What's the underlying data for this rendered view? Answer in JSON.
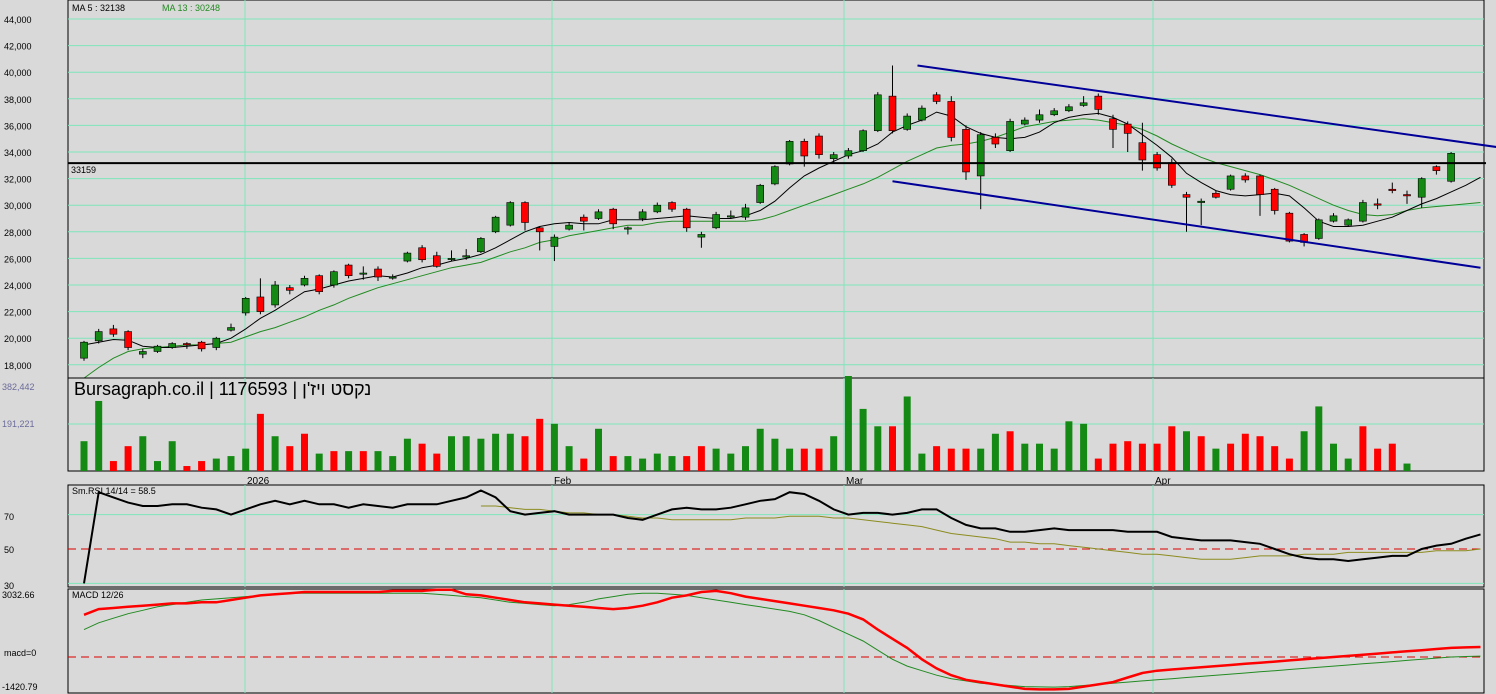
{
  "chart_data": {
    "type": "candlestick",
    "price_panel": {
      "yticks": [
        "44,000",
        "42,000",
        "40,000",
        "38,000",
        "36,000",
        "34,000",
        "32,000",
        "30,000",
        "28,000",
        "26,000",
        "24,000",
        "22,000",
        "20,000",
        "18,000"
      ],
      "ylim": [
        17000,
        44000
      ],
      "ma5_label": "MA 5 : 32138",
      "ma13_label": "MA 13 : 30248",
      "last_price_label": "33159",
      "last_price": 33159,
      "watermark": "Bursagraph.co.il | 1176593 | נקסט ויז'ן",
      "channel_upper": {
        "from": [
          56.7,
          40500
        ],
        "to": [
          98.5,
          34000
        ]
      },
      "channel_lower": {
        "from": [
          55.0,
          31800
        ],
        "to": [
          95.0,
          25300
        ]
      }
    },
    "candles": [
      [
        18500,
        19700,
        18300,
        19800,
        "g"
      ],
      [
        19800,
        20500,
        19600,
        20700,
        "g"
      ],
      [
        20700,
        20300,
        20100,
        21000,
        "r"
      ],
      [
        20500,
        19300,
        19100,
        20600,
        "r"
      ],
      [
        18800,
        19000,
        18500,
        19200,
        "g"
      ],
      [
        19000,
        19400,
        18900,
        19500,
        "g"
      ],
      [
        19300,
        19600,
        19200,
        19700,
        "g"
      ],
      [
        19600,
        19500,
        19200,
        19700,
        "r"
      ],
      [
        19700,
        19200,
        19000,
        19800,
        "r"
      ],
      [
        19300,
        20000,
        19100,
        20100,
        "g"
      ],
      [
        20600,
        20800,
        20500,
        21100,
        "g"
      ],
      [
        21900,
        23000,
        21700,
        23100,
        "g"
      ],
      [
        23100,
        22000,
        21800,
        24500,
        "r"
      ],
      [
        22500,
        24000,
        22300,
        24300,
        "g"
      ],
      [
        23800,
        23600,
        23300,
        24000,
        "r"
      ],
      [
        24000,
        24500,
        23900,
        24700,
        "g"
      ],
      [
        24700,
        23500,
        23300,
        24800,
        "r"
      ],
      [
        24000,
        25000,
        23800,
        25100,
        "g"
      ],
      [
        25500,
        24700,
        24500,
        25600,
        "r"
      ],
      [
        24900,
        24900,
        24400,
        25400,
        "g"
      ],
      [
        25200,
        24600,
        24300,
        25400,
        "r"
      ],
      [
        24600,
        24600,
        24400,
        24800,
        "g"
      ],
      [
        25800,
        26400,
        25700,
        26500,
        "g"
      ],
      [
        26800,
        25900,
        25700,
        27000,
        "r"
      ],
      [
        26200,
        25400,
        25300,
        26500,
        "r"
      ],
      [
        26000,
        26000,
        25800,
        26600,
        "g"
      ],
      [
        26200,
        26100,
        25900,
        26700,
        "g"
      ],
      [
        26500,
        27500,
        26400,
        27600,
        "g"
      ],
      [
        28000,
        29100,
        27900,
        29200,
        "g"
      ],
      [
        28500,
        30200,
        28400,
        30300,
        "g"
      ],
      [
        30200,
        28700,
        28100,
        30300,
        "r"
      ],
      [
        28300,
        28000,
        26600,
        28400,
        "r"
      ],
      [
        26900,
        27600,
        25800,
        27800,
        "g"
      ],
      [
        28200,
        28500,
        28100,
        28700,
        "g"
      ],
      [
        29100,
        28800,
        28100,
        29300,
        "r"
      ],
      [
        29000,
        29500,
        28900,
        29700,
        "g"
      ],
      [
        29700,
        28600,
        28200,
        29800,
        "r"
      ],
      [
        28200,
        28300,
        27800,
        28400,
        "g"
      ],
      [
        29000,
        29500,
        28800,
        29700,
        "g"
      ],
      [
        29500,
        30000,
        29400,
        30200,
        "g"
      ],
      [
        30200,
        29700,
        29500,
        30300,
        "r"
      ],
      [
        29700,
        28300,
        28000,
        29800,
        "r"
      ],
      [
        27600,
        27800,
        26800,
        28000,
        "g"
      ],
      [
        28300,
        29300,
        28200,
        29500,
        "g"
      ],
      [
        29200,
        29200,
        29000,
        29600,
        "g"
      ],
      [
        29100,
        29800,
        28900,
        30100,
        "g"
      ],
      [
        30200,
        31500,
        30100,
        31600,
        "g"
      ],
      [
        31600,
        32900,
        31500,
        33000,
        "g"
      ],
      [
        33100,
        34800,
        33000,
        34900,
        "g"
      ],
      [
        34800,
        33700,
        32900,
        35000,
        "r"
      ],
      [
        35200,
        33800,
        33500,
        35400,
        "r"
      ],
      [
        33800,
        33500,
        33200,
        34000,
        "g"
      ],
      [
        33700,
        34100,
        33500,
        34300,
        "g"
      ],
      [
        34100,
        35600,
        34000,
        35700,
        "g"
      ],
      [
        35600,
        38300,
        35500,
        38500,
        "g"
      ],
      [
        38200,
        35600,
        35400,
        40500,
        "r"
      ],
      [
        35700,
        36700,
        35600,
        36900,
        "g"
      ],
      [
        36400,
        37300,
        36300,
        37500,
        "g"
      ],
      [
        38300,
        37800,
        37600,
        38500,
        "r"
      ],
      [
        37800,
        35100,
        34800,
        38200,
        "r"
      ],
      [
        35700,
        32500,
        31900,
        36000,
        "r"
      ],
      [
        32200,
        35300,
        29700,
        35500,
        "g"
      ],
      [
        35100,
        34600,
        34300,
        35400,
        "r"
      ],
      [
        34100,
        36300,
        34000,
        36500,
        "g"
      ],
      [
        36100,
        36400,
        36000,
        36600,
        "g"
      ],
      [
        36400,
        36800,
        36200,
        37200,
        "g"
      ],
      [
        36800,
        37100,
        36700,
        37300,
        "g"
      ],
      [
        37100,
        37400,
        37000,
        37600,
        "g"
      ],
      [
        37500,
        37700,
        37400,
        38200,
        "g"
      ],
      [
        38200,
        37200,
        36800,
        38400,
        "r"
      ],
      [
        36500,
        35700,
        34300,
        36800,
        "r"
      ],
      [
        36100,
        35400,
        34000,
        36300,
        "r"
      ],
      [
        34700,
        33400,
        32600,
        36200,
        "r"
      ],
      [
        33800,
        32800,
        32600,
        34000,
        "r"
      ],
      [
        33200,
        31500,
        31300,
        33500,
        "r"
      ],
      [
        30800,
        30600,
        28000,
        31000,
        "r"
      ],
      [
        30200,
        30300,
        28500,
        30500,
        "g"
      ],
      [
        30600,
        30900,
        30500,
        31100,
        "r"
      ],
      [
        31200,
        32200,
        31100,
        32300,
        "g"
      ],
      [
        32200,
        31900,
        31700,
        32400,
        "r"
      ],
      [
        32200,
        30800,
        29200,
        32300,
        "r"
      ],
      [
        31200,
        29600,
        29300,
        31300,
        "r"
      ],
      [
        29400,
        27300,
        27200,
        29500,
        "r"
      ],
      [
        27800,
        27200,
        26900,
        27900,
        "r"
      ],
      [
        27500,
        28900,
        27400,
        29000,
        "g"
      ],
      [
        28800,
        29200,
        28700,
        29400,
        "g"
      ],
      [
        28500,
        28900,
        28400,
        29000,
        "g"
      ],
      [
        28800,
        30200,
        28700,
        30400,
        "g"
      ],
      [
        30000,
        30100,
        29700,
        30500,
        "r"
      ],
      [
        31100,
        31200,
        30900,
        31700,
        "r"
      ],
      [
        30700,
        30800,
        30100,
        31100,
        "r"
      ],
      [
        30600,
        32000,
        29800,
        32100,
        "g"
      ],
      [
        32900,
        32600,
        32300,
        33000,
        "r"
      ],
      [
        31800,
        33900,
        31700,
        34000,
        "g"
      ]
    ],
    "ma5": [
      19500,
      19700,
      19900,
      19850,
      19400,
      19300,
      19300,
      19400,
      19500,
      19600,
      20000,
      20700,
      21500,
      22100,
      22800,
      23500,
      23700,
      24000,
      24300,
      24500,
      24700,
      24600,
      24900,
      25300,
      25500,
      25800,
      26000,
      26300,
      26800,
      27400,
      28000,
      28400,
      28600,
      28700,
      28600,
      28600,
      28900,
      28900,
      28900,
      29000,
      29100,
      29200,
      29100,
      29000,
      29000,
      29200,
      29600,
      30300,
      31300,
      32200,
      32800,
      33300,
      33800,
      34100,
      34600,
      35500,
      36000,
      36400,
      37000,
      36700,
      35900,
      35400,
      35100,
      35000,
      35100,
      35500,
      36200,
      36600,
      36800,
      36900,
      36600,
      36100,
      35300,
      34500,
      33600,
      32400,
      31700,
      31100,
      30800,
      30700,
      30800,
      30900,
      30700,
      29800,
      28800,
      28400,
      28400,
      28500,
      28800,
      29100,
      29600,
      30100,
      30500,
      31000,
      31500,
      32100
    ],
    "ma13": [
      17000,
      17800,
      18500,
      19000,
      19200,
      19300,
      19400,
      19500,
      19500,
      19600,
      19700,
      20100,
      20500,
      20800,
      21200,
      21600,
      22100,
      22500,
      23000,
      23400,
      23800,
      24100,
      24400,
      24700,
      25000,
      25300,
      25500,
      25700,
      26100,
      26500,
      26800,
      27200,
      27400,
      27700,
      27900,
      28100,
      28300,
      28500,
      28500,
      28700,
      28800,
      28800,
      28800,
      28800,
      28800,
      28800,
      28900,
      29200,
      29600,
      30000,
      30400,
      30800,
      31200,
      31600,
      32100,
      32700,
      33300,
      33800,
      34300,
      34500,
      34600,
      34800,
      35100,
      35500,
      35900,
      36100,
      36300,
      36400,
      36500,
      36400,
      36200,
      36000,
      35700,
      35200,
      34600,
      34100,
      33600,
      33200,
      32900,
      32600,
      32300,
      31900,
      31500,
      31000,
      30500,
      30000,
      29600,
      29300,
      29200,
      29300,
      29600,
      29800,
      29900,
      30000,
      30100,
      30200
    ]
  },
  "volume_panel": {
    "tick_labels": [
      "382,442",
      "191,221"
    ],
    "max": 382442,
    "volumes": [
      120000,
      282000,
      40000,
      100000,
      140000,
      40000,
      120000,
      20000,
      40000,
      50000,
      60000,
      90000,
      230000,
      140000,
      100000,
      150000,
      70000,
      80000,
      80000,
      80000,
      80000,
      60000,
      130000,
      110000,
      70000,
      140000,
      140000,
      130000,
      150000,
      150000,
      140000,
      210000,
      190000,
      100000,
      50000,
      170000,
      60000,
      60000,
      50000,
      70000,
      60000,
      60000,
      100000,
      90000,
      70000,
      100000,
      170000,
      130000,
      90000,
      90000,
      90000,
      140000,
      382442,
      250000,
      180000,
      180000,
      300000,
      70000,
      100000,
      90000,
      90000,
      90000,
      150000,
      160000,
      110000,
      110000,
      90000,
      200000,
      190000,
      50000,
      110000,
      120000,
      110000,
      110000,
      180000,
      160000,
      140000,
      90000,
      110000,
      150000,
      140000,
      100000,
      50000,
      160000,
      260000,
      110000,
      50000,
      180000,
      90000,
      110000,
      30000,
      0,
      0,
      0,
      0,
      0
    ],
    "vol_colors": "ggrrgggrrgggrgrrgrgrgggrrgggggrrggrgrggggrrggggggrrggggrggrrrggrgggggrrrrrrgrgrrrrrggggrrrgrg"
  },
  "months": [
    "2026",
    "Feb",
    "Mar",
    "Apr"
  ],
  "rsi_panel": {
    "label": "Sm.RSI 14/14 = 58.5",
    "yticks": [
      "70",
      "50",
      "30"
    ],
    "ylim": [
      29,
      83
    ],
    "rsi": [
      30,
      83,
      80,
      77,
      75,
      75,
      76,
      76,
      74,
      73,
      70,
      73,
      76,
      78,
      76,
      78,
      76,
      76,
      74,
      76,
      75,
      74,
      76,
      76,
      76,
      78,
      80,
      84,
      80,
      72,
      70,
      71,
      72,
      70,
      70,
      70,
      70,
      68,
      67,
      70,
      73,
      74,
      73,
      73,
      74,
      76,
      78,
      79,
      83,
      82,
      78,
      73,
      70,
      71,
      71,
      70,
      71,
      73,
      73,
      68,
      64,
      62,
      62,
      60,
      60,
      61,
      62,
      61,
      61,
      61,
      61,
      60,
      60,
      60,
      57,
      56,
      55,
      55,
      55,
      54,
      53,
      50,
      47,
      45,
      44,
      44,
      43,
      44,
      45,
      46,
      46,
      50,
      52,
      53,
      56,
      58.5
    ],
    "rsi_signal": [
      null,
      null,
      null,
      null,
      null,
      null,
      null,
      null,
      null,
      null,
      null,
      null,
      null,
      null,
      null,
      null,
      null,
      null,
      null,
      null,
      null,
      null,
      null,
      null,
      null,
      null,
      null,
      75,
      75,
      74,
      73,
      73,
      72,
      71,
      71,
      70,
      70,
      69,
      68,
      68,
      67,
      67,
      67,
      67,
      67,
      68,
      68,
      68,
      69,
      69,
      69,
      68,
      68,
      67,
      66,
      65,
      64,
      63,
      61,
      59,
      58,
      57,
      56,
      54,
      54,
      53,
      53,
      52,
      51,
      50,
      49,
      48,
      47,
      47,
      46,
      45,
      44,
      44,
      44,
      45,
      46,
      46,
      46,
      47,
      47,
      47,
      48,
      48,
      48,
      48,
      48,
      48,
      49,
      49,
      49,
      50
    ]
  },
  "macd_panel": {
    "label": "MACD 12/26",
    "tick_labels": [
      "3032.66",
      "macd=0",
      "-1420.79"
    ],
    "ylim": [
      -1420.79,
      3032.66
    ],
    "macd": [
      1850,
      2100,
      2150,
      2200,
      2250,
      2300,
      2350,
      2350,
      2400,
      2400,
      2500,
      2600,
      2700,
      2750,
      2800,
      2850,
      2850,
      2850,
      2850,
      2850,
      2850,
      2900,
      2900,
      2900,
      2950,
      2950,
      2750,
      2700,
      2600,
      2500,
      2400,
      2350,
      2300,
      2250,
      2200,
      2150,
      2100,
      2150,
      2250,
      2400,
      2600,
      2700,
      2850,
      2900,
      2800,
      2650,
      2550,
      2450,
      2350,
      2250,
      2150,
      2050,
      1900,
      1650,
      1200,
      800,
      400,
      -100,
      -500,
      -800,
      -1000,
      -1100,
      -1200,
      -1300,
      -1400,
      -1420,
      -1420,
      -1400,
      -1300,
      -1200,
      -1100,
      -900,
      -700,
      -600,
      -550,
      -500,
      -450,
      -400,
      -350,
      -300,
      -250,
      -200,
      -150,
      -100,
      -50,
      0,
      50,
      100,
      150,
      200,
      250,
      300,
      350,
      400,
      420,
      440
    ],
    "signal": [
      1200,
      1500,
      1700,
      1900,
      2050,
      2200,
      2300,
      2400,
      2500,
      2550,
      2600,
      2650,
      2700,
      2750,
      2800,
      2800,
      2800,
      2800,
      2800,
      2800,
      2800,
      2800,
      2800,
      2800,
      2750,
      2700,
      2650,
      2600,
      2500,
      2400,
      2350,
      2300,
      2250,
      2300,
      2400,
      2550,
      2650,
      2750,
      2800,
      2800,
      2750,
      2700,
      2600,
      2500,
      2400,
      2300,
      2200,
      2100,
      2000,
      1850,
      1600,
      1300,
      1000,
      700,
      300,
      -100,
      -400,
      -600,
      -800,
      -950,
      -1050,
      -1150,
      -1200,
      -1250,
      -1300,
      -1310,
      -1320,
      -1300,
      -1250,
      -1200,
      -1150,
      -1100,
      -1050,
      -1000,
      -950,
      -900,
      -850,
      -800,
      -750,
      -700,
      -650,
      -600,
      -550,
      -500,
      -450,
      -400,
      -350,
      -300,
      -250,
      -200,
      -150,
      -100,
      -50,
      0,
      20,
      40
    ],
    "zero": 0
  },
  "colors": {
    "background": "#d9d9d9",
    "grid": "#7fe6ba",
    "up": "#148a14",
    "down": "#ff0000",
    "ma5": "#000000",
    "ma13": "#228b22",
    "channel": "#000099",
    "price_line": "#000000",
    "rsi": "#000000",
    "rsi_signal": "#8c8c20",
    "macd": "#ff0000",
    "macd_signal": "#228b22",
    "ref_dash": "#dd0000"
  }
}
